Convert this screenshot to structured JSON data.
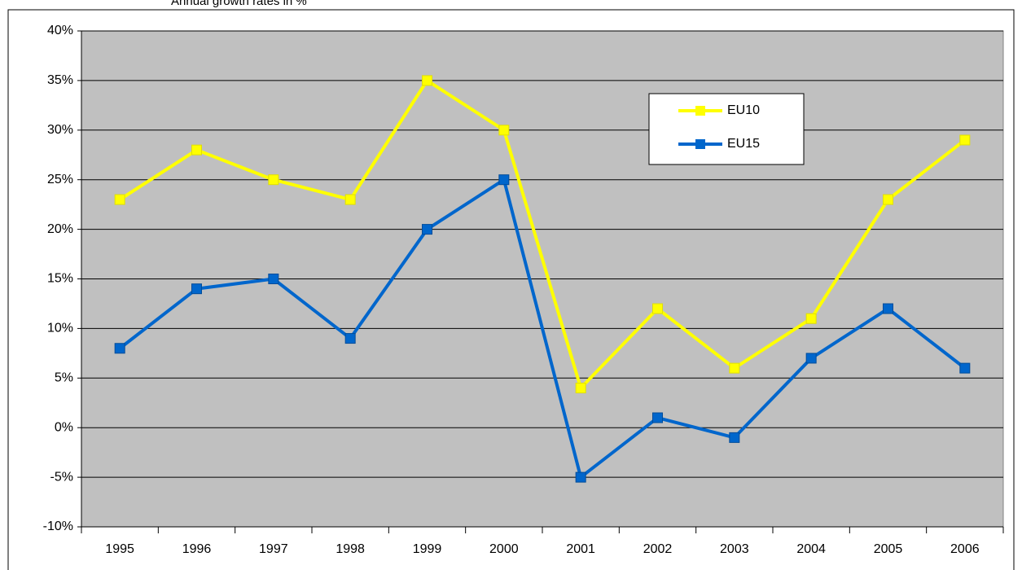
{
  "chart_data": {
    "type": "line",
    "subtitle": "Annual growth rates in %",
    "categories": [
      "1995",
      "1996",
      "1997",
      "1998",
      "1999",
      "2000",
      "2001",
      "2002",
      "2003",
      "2004",
      "2005",
      "2006"
    ],
    "series": [
      {
        "name": "EU10",
        "color": "#ffff00",
        "values": [
          23,
          28,
          25,
          23,
          35,
          30,
          4,
          12,
          6,
          11,
          23,
          29
        ]
      },
      {
        "name": "EU15",
        "color": "#0066cc",
        "values": [
          8,
          14,
          15,
          9,
          20,
          25,
          -5,
          1,
          -1,
          7,
          12,
          6
        ]
      }
    ],
    "ylim": [
      -10,
      40
    ],
    "yticks": [
      {
        "value": -10,
        "label": "-10%"
      },
      {
        "value": -5,
        "label": "-5%"
      },
      {
        "value": 0,
        "label": "0%"
      },
      {
        "value": 5,
        "label": "5%"
      },
      {
        "value": 10,
        "label": "10%"
      },
      {
        "value": 15,
        "label": "15%"
      },
      {
        "value": 20,
        "label": "20%"
      },
      {
        "value": 25,
        "label": "25%"
      },
      {
        "value": 30,
        "label": "30%"
      },
      {
        "value": 35,
        "label": "35%"
      },
      {
        "value": 40,
        "label": "40%"
      }
    ],
    "grid": true,
    "legend": "upper-right",
    "plot_background": "#c0c0c0"
  }
}
